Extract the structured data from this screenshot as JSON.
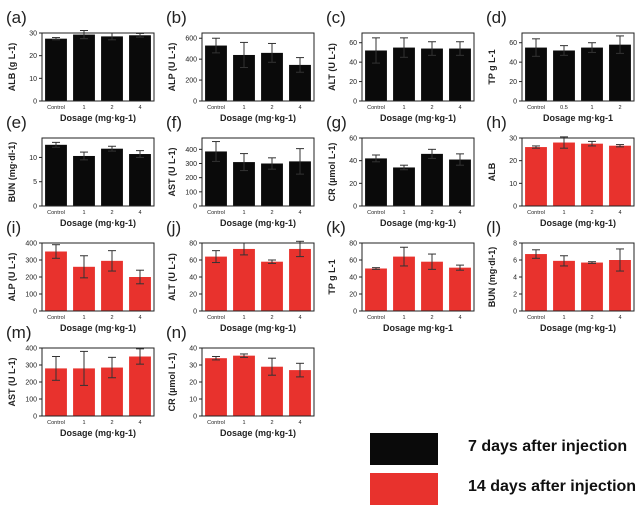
{
  "legend": {
    "items": [
      {
        "label": "7 days after injection",
        "color": "#0a0a0a"
      },
      {
        "label": "14 days after injection",
        "color": "#e8322d"
      }
    ]
  },
  "chart_data": [
    {
      "panel": "(a)",
      "type": "bar",
      "color": "#0a0a0a",
      "ylabel": "ALB (g L-1)",
      "xlabel": "Dosage (mg·kg-1)",
      "categories": [
        "Control",
        "1",
        "2",
        "4"
      ],
      "values": [
        27.5,
        29.3,
        28.5,
        29.0
      ],
      "errors": [
        0.5,
        1.8,
        1.5,
        0.8
      ],
      "ylim": [
        0,
        30
      ],
      "yticks": [
        0,
        10,
        20,
        30
      ]
    },
    {
      "panel": "(b)",
      "type": "bar",
      "color": "#0a0a0a",
      "ylabel": "ALP (U L-1)",
      "xlabel": "Dosage (mg·kg-1)",
      "categories": [
        "Control",
        "1",
        "2",
        "4"
      ],
      "values": [
        530,
        440,
        460,
        345
      ],
      "errors": [
        70,
        120,
        90,
        70
      ],
      "ylim": [
        0,
        650
      ],
      "yticks": [
        0,
        200,
        400,
        600
      ]
    },
    {
      "panel": "(c)",
      "type": "bar",
      "color": "#0a0a0a",
      "ylabel": "ALT (U L-1)",
      "xlabel": "Dosage (mg·kg-1)",
      "categories": [
        "Control",
        "1",
        "2",
        "4"
      ],
      "values": [
        52,
        55,
        54,
        54
      ],
      "errors": [
        13,
        10,
        7,
        7
      ],
      "ylim": [
        0,
        70
      ],
      "yticks": [
        0,
        20,
        40,
        60
      ]
    },
    {
      "panel": "(d)",
      "type": "bar",
      "color": "#0a0a0a",
      "ylabel": "TP g L-1",
      "xlabel": "Dosage mg·kg-1",
      "categories": [
        "Control",
        "0.5",
        "1",
        "2"
      ],
      "values": [
        55,
        52,
        55,
        58
      ],
      "errors": [
        9,
        5,
        5,
        9
      ],
      "ylim": [
        0,
        70
      ],
      "yticks": [
        0,
        20,
        40,
        60
      ]
    },
    {
      "panel": "(e)",
      "type": "bar",
      "color": "#0a0a0a",
      "ylabel": "BUN (mg·dl-1)",
      "xlabel": "Dosage (mg·kg-1)",
      "categories": [
        "Control",
        "1",
        "2",
        "4"
      ],
      "values": [
        12.6,
        10.3,
        11.8,
        10.7
      ],
      "errors": [
        0.5,
        0.8,
        0.5,
        0.7
      ],
      "ylim": [
        0,
        14
      ],
      "yticks": [
        0,
        5,
        10
      ]
    },
    {
      "panel": "(f)",
      "type": "bar",
      "color": "#0a0a0a",
      "ylabel": "AST (U L-1)",
      "xlabel": "Dosage (mg·kg-1)",
      "categories": [
        "Control",
        "1",
        "2",
        "4"
      ],
      "values": [
        385,
        310,
        300,
        315
      ],
      "errors": [
        70,
        60,
        40,
        90
      ],
      "ylim": [
        0,
        480
      ],
      "yticks": [
        0,
        100,
        200,
        300,
        400
      ]
    },
    {
      "panel": "(g)",
      "type": "bar",
      "color": "#0a0a0a",
      "ylabel": "CR (µmol L-1)",
      "xlabel": "Dosage (mg·kg-1)",
      "categories": [
        "Control",
        "1",
        "2",
        "4"
      ],
      "values": [
        42,
        34,
        46,
        41
      ],
      "errors": [
        3,
        2,
        4,
        5
      ],
      "ylim": [
        0,
        60
      ],
      "yticks": [
        0,
        20,
        40,
        60
      ]
    },
    {
      "panel": "(h)",
      "type": "bar",
      "color": "#e8322d",
      "ylabel": "ALB",
      "xlabel": "Dosage (mg·kg-1)",
      "categories": [
        "Control",
        "1",
        "2",
        "4"
      ],
      "values": [
        26.0,
        28.0,
        27.5,
        26.6
      ],
      "errors": [
        0.5,
        2.5,
        1.0,
        0.5
      ],
      "ylim": [
        0,
        30
      ],
      "yticks": [
        0,
        10,
        20,
        30
      ]
    },
    {
      "panel": "(i)",
      "type": "bar",
      "color": "#e8322d",
      "ylabel": "ALP (U L-1)",
      "xlabel": "Dosage (mg·kg-1)",
      "categories": [
        "Control",
        "1",
        "2",
        "4"
      ],
      "values": [
        350,
        260,
        295,
        200
      ],
      "errors": [
        40,
        65,
        60,
        40
      ],
      "ylim": [
        0,
        400
      ],
      "yticks": [
        0,
        100,
        200,
        300,
        400
      ]
    },
    {
      "panel": "(j)",
      "type": "bar",
      "color": "#e8322d",
      "ylabel": "ALT (U L-1)",
      "xlabel": "Dosage (mg·kg-1)",
      "categories": [
        "Control",
        "1",
        "2",
        "4"
      ],
      "values": [
        64,
        73,
        58,
        73
      ],
      "errors": [
        7,
        7,
        2,
        9
      ],
      "ylim": [
        0,
        80
      ],
      "yticks": [
        0,
        20,
        40,
        60,
        80
      ]
    },
    {
      "panel": "(k)",
      "type": "bar",
      "color": "#e8322d",
      "ylabel": "TP g L-1",
      "xlabel": "Dosage mg·kg-1",
      "categories": [
        "Control",
        "1",
        "2",
        "4"
      ],
      "values": [
        50,
        64,
        58,
        51
      ],
      "errors": [
        1,
        11,
        9,
        3
      ],
      "ylim": [
        0,
        80
      ],
      "yticks": [
        0,
        20,
        40,
        60,
        80
      ]
    },
    {
      "panel": "(l)",
      "type": "bar",
      "color": "#e8322d",
      "ylabel": "BUN (mg·dl-1)",
      "xlabel": "Dosage (mg·kg-1)",
      "categories": [
        "Control",
        "1",
        "2",
        "4"
      ],
      "values": [
        6.7,
        5.9,
        5.7,
        6.0
      ],
      "errors": [
        0.5,
        0.6,
        0.1,
        1.3
      ],
      "ylim": [
        0,
        8
      ],
      "yticks": [
        0,
        2,
        4,
        6,
        8
      ]
    },
    {
      "panel": "(m)",
      "type": "bar",
      "color": "#e8322d",
      "ylabel": "AST (U L-1)",
      "xlabel": "Dosage (mg·kg-1)",
      "categories": [
        "Control",
        "1",
        "2",
        "4"
      ],
      "values": [
        280,
        280,
        285,
        350
      ],
      "errors": [
        70,
        100,
        60,
        45
      ],
      "ylim": [
        0,
        400
      ],
      "yticks": [
        0,
        100,
        200,
        300,
        400
      ]
    },
    {
      "panel": "(n)",
      "type": "bar",
      "color": "#e8322d",
      "ylabel": "CR (µmol L-1)",
      "xlabel": "Dosage (mg·kg-1)",
      "categories": [
        "Control",
        "1",
        "2",
        "4"
      ],
      "values": [
        34,
        35.5,
        29,
        27
      ],
      "errors": [
        1,
        1,
        5,
        4
      ],
      "ylim": [
        0,
        40
      ],
      "yticks": [
        0,
        10,
        20,
        30,
        40
      ]
    }
  ]
}
